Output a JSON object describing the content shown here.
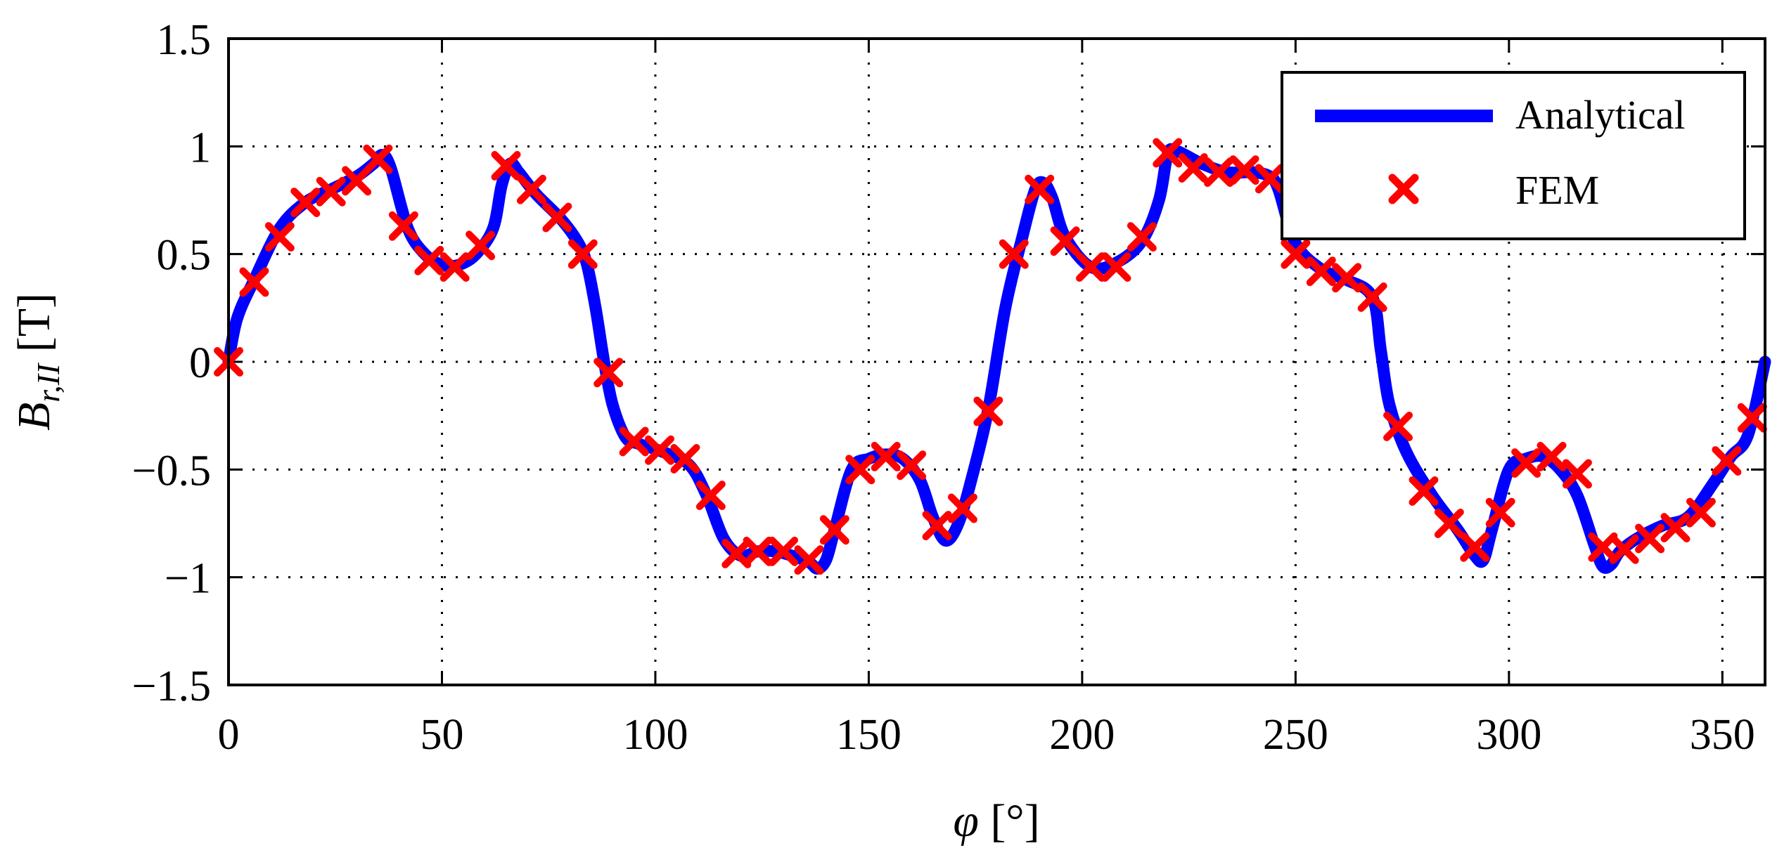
{
  "chart_data": {
    "type": "line",
    "xlabel_symbol": "φ",
    "xlabel_unit": "[°]",
    "ylabel_main": "B",
    "ylabel_sub": "r,II",
    "ylabel_unit": "[T]",
    "xlim": [
      0,
      360
    ],
    "ylim": [
      -1.5,
      1.5
    ],
    "xticks": [
      0,
      50,
      100,
      150,
      200,
      250,
      300,
      350
    ],
    "yticks": [
      -1.5,
      -1,
      -0.5,
      0,
      0.5,
      1,
      1.5
    ],
    "xtick_labels": [
      "0",
      "50",
      "100",
      "150",
      "200",
      "250",
      "300",
      "350"
    ],
    "ytick_labels": [
      "−1.5",
      "−1",
      "−0.5",
      "0",
      "0.5",
      "1",
      "1.5"
    ],
    "grid": true,
    "legend_position": "top-right",
    "series": [
      {
        "name": "Analytical",
        "style": "line",
        "color": "#0000ff",
        "x": [
          0,
          2,
          6,
          12,
          18,
          24,
          30,
          34,
          36,
          38,
          42,
          46,
          50,
          54,
          58,
          62,
          64,
          66,
          68,
          72,
          78,
          82,
          84,
          86,
          88,
          90,
          93,
          96,
          102,
          108,
          112,
          116,
          120,
          124,
          128,
          132,
          136,
          138,
          140,
          142,
          146,
          150,
          154,
          158,
          162,
          165,
          168,
          171,
          174,
          178,
          182,
          186,
          189,
          191,
          193,
          196,
          202,
          208,
          214,
          218,
          220,
          222,
          228,
          234,
          240,
          244,
          246,
          250,
          256,
          262,
          268,
          270,
          272,
          276,
          282,
          288,
          292,
          294,
          296,
          300,
          304,
          308,
          312,
          316,
          320,
          322,
          324,
          326,
          330,
          336,
          342,
          348,
          352,
          356,
          360
        ],
        "y": [
          0.0,
          0.2,
          0.38,
          0.62,
          0.74,
          0.8,
          0.86,
          0.92,
          0.96,
          0.9,
          0.62,
          0.5,
          0.45,
          0.45,
          0.5,
          0.62,
          0.82,
          0.92,
          0.88,
          0.78,
          0.66,
          0.55,
          0.45,
          0.25,
          0.0,
          -0.2,
          -0.35,
          -0.38,
          -0.42,
          -0.48,
          -0.62,
          -0.82,
          -0.9,
          -0.88,
          -0.88,
          -0.9,
          -0.93,
          -0.96,
          -0.92,
          -0.78,
          -0.5,
          -0.45,
          -0.43,
          -0.45,
          -0.55,
          -0.72,
          -0.83,
          -0.75,
          -0.55,
          -0.22,
          0.25,
          0.58,
          0.8,
          0.83,
          0.76,
          0.58,
          0.44,
          0.46,
          0.56,
          0.75,
          0.96,
          0.98,
          0.92,
          0.88,
          0.88,
          0.86,
          0.8,
          0.55,
          0.43,
          0.38,
          0.3,
          0.05,
          -0.2,
          -0.42,
          -0.62,
          -0.78,
          -0.9,
          -0.92,
          -0.78,
          -0.5,
          -0.45,
          -0.44,
          -0.5,
          -0.62,
          -0.85,
          -0.95,
          -0.94,
          -0.88,
          -0.82,
          -0.76,
          -0.72,
          -0.56,
          -0.44,
          -0.34,
          0.0
        ]
      },
      {
        "name": "FEM",
        "style": "marker-x",
        "color": "#ff0000",
        "x": [
          0,
          6,
          12,
          18,
          24,
          30,
          35,
          41,
          47,
          53,
          59,
          65,
          71,
          77,
          83,
          89,
          95,
          101,
          107,
          113,
          119,
          124,
          130,
          136,
          142,
          148,
          154,
          160,
          166,
          172,
          178,
          184,
          190,
          196,
          202,
          208,
          214,
          220,
          226,
          232,
          238,
          244,
          250,
          256,
          262,
          268,
          274,
          280,
          286,
          292,
          298,
          304,
          310,
          316,
          322,
          327,
          333,
          339,
          345,
          351,
          357
        ],
        "y": [
          0.0,
          0.37,
          0.58,
          0.74,
          0.79,
          0.84,
          0.94,
          0.63,
          0.47,
          0.44,
          0.54,
          0.91,
          0.8,
          0.67,
          0.5,
          -0.05,
          -0.37,
          -0.41,
          -0.45,
          -0.62,
          -0.89,
          -0.88,
          -0.88,
          -0.92,
          -0.78,
          -0.5,
          -0.44,
          -0.48,
          -0.76,
          -0.68,
          -0.23,
          0.5,
          0.8,
          0.56,
          0.44,
          0.44,
          0.58,
          0.97,
          0.9,
          0.88,
          0.89,
          0.85,
          0.5,
          0.42,
          0.39,
          0.3,
          -0.3,
          -0.6,
          -0.75,
          -0.86,
          -0.7,
          -0.47,
          -0.44,
          -0.52,
          -0.86,
          -0.87,
          -0.82,
          -0.77,
          -0.7,
          -0.46,
          -0.26
        ]
      }
    ]
  }
}
